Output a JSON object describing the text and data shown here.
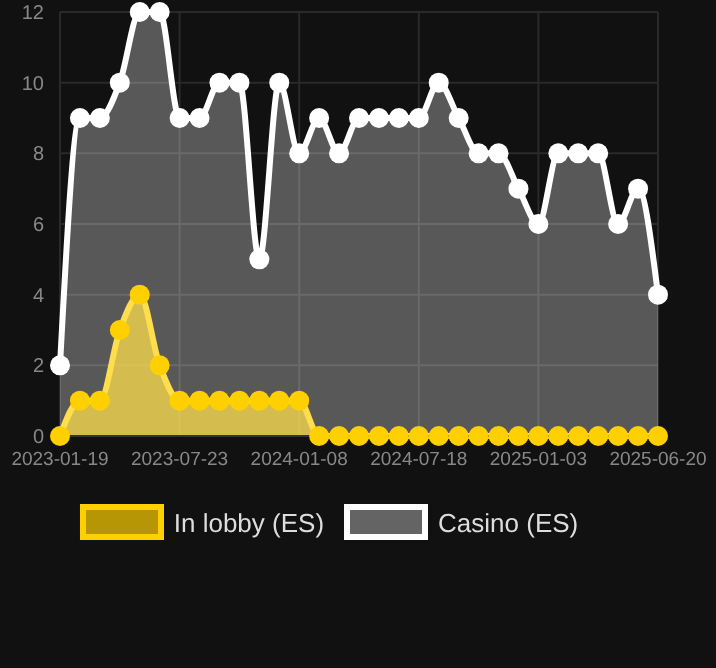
{
  "chart_data": {
    "type": "area",
    "categories": [
      "2023-01-19",
      null,
      null,
      null,
      null,
      null,
      "2023-07-23",
      null,
      null,
      null,
      null,
      null,
      "2024-01-08",
      null,
      null,
      null,
      null,
      null,
      "2024-07-18",
      null,
      null,
      null,
      null,
      null,
      "2025-01-03",
      null,
      null,
      null,
      null,
      null,
      "2025-06-20"
    ],
    "series": [
      {
        "name": "In lobby (ES)",
        "color": "#ffd000",
        "values": [
          0,
          1,
          1,
          3,
          4,
          2,
          1,
          1,
          1,
          1,
          1,
          1,
          1,
          0,
          0,
          0,
          0,
          0,
          0,
          0,
          0,
          0,
          0,
          0,
          0,
          0,
          0,
          0,
          0,
          0,
          0
        ]
      },
      {
        "name": "Casino (ES)",
        "color": "#ffffff",
        "values": [
          2,
          9,
          9,
          10,
          12,
          12,
          9,
          9,
          10,
          10,
          5,
          10,
          8,
          9,
          8,
          9,
          9,
          9,
          9,
          10,
          9,
          8,
          8,
          7,
          6,
          8,
          8,
          8,
          6,
          7,
          4
        ]
      }
    ],
    "ylim": [
      0,
      12
    ],
    "yticks": [
      0,
      2,
      4,
      6,
      8,
      10,
      12
    ],
    "grid": true,
    "legend": "bottom",
    "marker": "circle",
    "line_style": "solid"
  }
}
